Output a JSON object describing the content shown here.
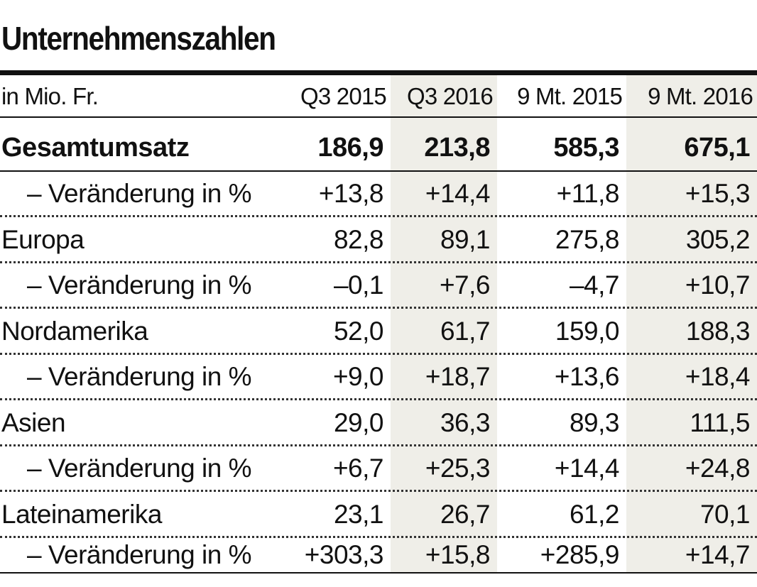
{
  "title": "Unternehmenszahlen",
  "colors": {
    "shade": "#efeee8",
    "rule": "#111111"
  },
  "chart_data": {
    "type": "table",
    "unit_label": "in Mio. Fr.",
    "columns": [
      "Q3 2015",
      "Q3 2016",
      "9 Mt. 2015",
      "9 Mt. 2016"
    ],
    "rows": [
      {
        "label": "Gesamtumsatz",
        "values": [
          "186,9",
          "213,8",
          "585,3",
          "675,1"
        ]
      },
      {
        "label": "– Veränderung in %",
        "values": [
          "+13,8",
          "+14,4",
          "+11,8",
          "+15,3"
        ]
      },
      {
        "label": "Europa",
        "values": [
          "82,8",
          "89,1",
          "275,8",
          "305,2"
        ]
      },
      {
        "label": "– Veränderung in %",
        "values": [
          "–0,1",
          "+7,6",
          "–4,7",
          "+10,7"
        ]
      },
      {
        "label": "Nordamerika",
        "values": [
          "52,0",
          "61,7",
          "159,0",
          "188,3"
        ]
      },
      {
        "label": "– Veränderung in %",
        "values": [
          "+9,0",
          "+18,7",
          "+13,6",
          "+18,4"
        ]
      },
      {
        "label": "Asien",
        "values": [
          "29,0",
          "36,3",
          "89,3",
          "111,5"
        ]
      },
      {
        "label": "– Veränderung in %",
        "values": [
          "+6,7",
          "+25,3",
          "+14,4",
          "+24,8"
        ]
      },
      {
        "label": "Lateinamerika",
        "values": [
          "23,1",
          "26,7",
          "61,2",
          "70,1"
        ]
      },
      {
        "label": "– Veränderung in %",
        "values": [
          "+303,3",
          "+15,8",
          "+285,9",
          "+14,7"
        ]
      }
    ]
  }
}
